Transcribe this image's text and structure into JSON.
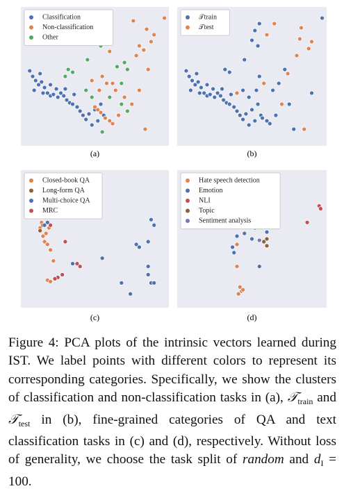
{
  "chart_data": [
    {
      "type": "scatter",
      "label": "(a)",
      "xlim": [
        0,
        100
      ],
      "ylim": [
        0,
        100
      ],
      "legend": "upper left",
      "series": [
        {
          "name": "Classification",
          "color": "#4c72b0",
          "x": [
            6,
            8,
            10,
            12,
            9,
            14,
            16,
            18,
            20,
            22,
            25,
            27,
            29,
            31,
            33,
            35,
            24,
            30,
            36,
            20,
            13,
            15,
            38,
            40,
            42,
            44,
            46,
            50,
            54,
            52,
            56,
            48
          ],
          "y": [
            54,
            50,
            47,
            44,
            40,
            46,
            42,
            38,
            36,
            37,
            35,
            38,
            36,
            33,
            31,
            30,
            41,
            41,
            37,
            44,
            52,
            38,
            28,
            25,
            22,
            19,
            23,
            26,
            30,
            18,
            22,
            15
          ]
        },
        {
          "name": "Non-classification",
          "color": "#dd8452",
          "x": [
            97,
            90,
            85,
            88,
            80,
            78,
            83,
            76,
            55,
            58,
            52,
            60,
            55,
            48,
            58,
            53,
            64,
            70,
            75,
            50,
            52,
            54,
            57,
            60,
            62,
            66,
            84,
            62,
            80,
            86
          ],
          "y": [
            92,
            80,
            84,
            75,
            72,
            65,
            69,
            90,
            88,
            85,
            83,
            68,
            50,
            47,
            45,
            40,
            40,
            35,
            30,
            28,
            26,
            24,
            20,
            18,
            16,
            22,
            12,
            45,
            40,
            55
          ]
        },
        {
          "name": "Other",
          "color": "#55a868",
          "x": [
            50,
            45,
            54,
            32,
            35,
            70,
            72,
            65,
            60,
            68,
            55,
            72,
            48,
            44,
            30,
            68
          ],
          "y": [
            76,
            62,
            72,
            55,
            53,
            60,
            55,
            57,
            35,
            30,
            10,
            25,
            35,
            40,
            50,
            45
          ]
        }
      ]
    },
    {
      "type": "scatter",
      "label": "(b)",
      "xlim": [
        0,
        100
      ],
      "ylim": [
        0,
        100
      ],
      "legend": "upper left",
      "series": [
        {
          "name": "𝒯train",
          "color": "#4c72b0",
          "x": [
            6,
            8,
            10,
            12,
            9,
            14,
            16,
            18,
            20,
            22,
            25,
            27,
            29,
            31,
            33,
            35,
            24,
            30,
            36,
            20,
            13,
            15,
            38,
            40,
            42,
            44,
            46,
            50,
            54,
            52,
            56,
            48,
            97,
            55,
            52,
            50,
            45,
            54,
            32,
            35,
            72,
            48,
            44,
            68,
            62,
            75,
            64,
            55,
            60,
            57,
            53,
            66,
            78,
            90
          ],
          "y": [
            54,
            50,
            47,
            44,
            40,
            46,
            42,
            38,
            36,
            37,
            35,
            38,
            36,
            33,
            31,
            30,
            41,
            41,
            37,
            44,
            52,
            38,
            28,
            25,
            22,
            19,
            23,
            26,
            30,
            18,
            22,
            15,
            92,
            88,
            83,
            76,
            62,
            72,
            55,
            53,
            55,
            35,
            40,
            45,
            16,
            30,
            40,
            50,
            18,
            20,
            40,
            22,
            12,
            38
          ]
        },
        {
          "name": "𝒯test",
          "color": "#dd8452",
          "x": [
            82,
            83,
            88,
            80,
            74,
            65,
            60,
            40,
            70,
            85,
            58,
            90
          ],
          "y": [
            77,
            85,
            70,
            65,
            52,
            88,
            80,
            38,
            30,
            12,
            45,
            75
          ]
        }
      ]
    },
    {
      "type": "scatter",
      "label": "(c)",
      "xlim": [
        0,
        100
      ],
      "ylim": [
        0,
        100
      ],
      "legend": "upper left",
      "series": [
        {
          "name": "Closed-book QA",
          "color": "#dd8452",
          "x": [
            12,
            14,
            13,
            15,
            16,
            18,
            20,
            19,
            17,
            22,
            18,
            20
          ],
          "y": [
            66,
            62,
            58,
            52,
            48,
            46,
            42,
            58,
            54,
            34,
            20,
            19
          ]
        },
        {
          "name": "Long-form QA",
          "color": "#8c613c",
          "x": [
            13,
            15
          ],
          "y": [
            56,
            60
          ]
        },
        {
          "name": "Multi-choice QA",
          "color": "#4c72b0",
          "x": [
            16,
            18,
            88,
            90,
            78,
            80,
            86,
            55,
            86,
            86,
            88,
            90,
            68,
            74,
            35
          ],
          "y": [
            60,
            62,
            64,
            60,
            46,
            44,
            48,
            36,
            30,
            24,
            18,
            18,
            18,
            10,
            32
          ]
        },
        {
          "name": "MRC",
          "color": "#c44e52",
          "x": [
            30,
            40,
            25,
            23,
            28,
            38,
            20
          ],
          "y": [
            48,
            30,
            22,
            21,
            24,
            32,
            60
          ]
        }
      ]
    },
    {
      "type": "scatter",
      "label": "(d)",
      "xlim": [
        0,
        100
      ],
      "ylim": [
        0,
        100
      ],
      "legend": "upper left",
      "series": [
        {
          "name": "Hate speech detection",
          "color": "#dd8452",
          "x": [
            40,
            42,
            43,
            41,
            40,
            44
          ],
          "y": [
            30,
            15,
            12,
            10,
            46,
            13
          ]
        },
        {
          "name": "Emotion",
          "color": "#4c72b0",
          "x": [
            40,
            45,
            52,
            50,
            37,
            38,
            55,
            60
          ],
          "y": [
            52,
            54,
            58,
            50,
            44,
            40,
            30,
            55
          ]
        },
        {
          "name": "NLI",
          "color": "#c44e52",
          "x": [
            95,
            87,
            96
          ],
          "y": [
            74,
            62,
            72
          ]
        },
        {
          "name": "Topic",
          "color": "#8c613c",
          "x": [
            60,
            60,
            58
          ],
          "y": [
            50,
            45,
            48
          ]
        },
        {
          "name": "Sentiment analysis",
          "color": "#8172b3",
          "x": [
            42,
            55
          ],
          "y": [
            60,
            49
          ]
        }
      ]
    }
  ],
  "caption": [
    "Figure 4: PCA plots of the intrinsic vectors learned during IST. We label points with different colors to represent its corresponding categories. Specifically, we show the clusters of classification and non-classification tasks in (a), ",
    "𝒯",
    "train",
    " and ",
    "𝒯",
    "test",
    " in (b), fine-grained categories of QA and text classification tasks in (c) and (d), respectively. Without loss of generality, we choose the task split of ",
    "random",
    " and ",
    "d",
    "I",
    " = 100."
  ]
}
